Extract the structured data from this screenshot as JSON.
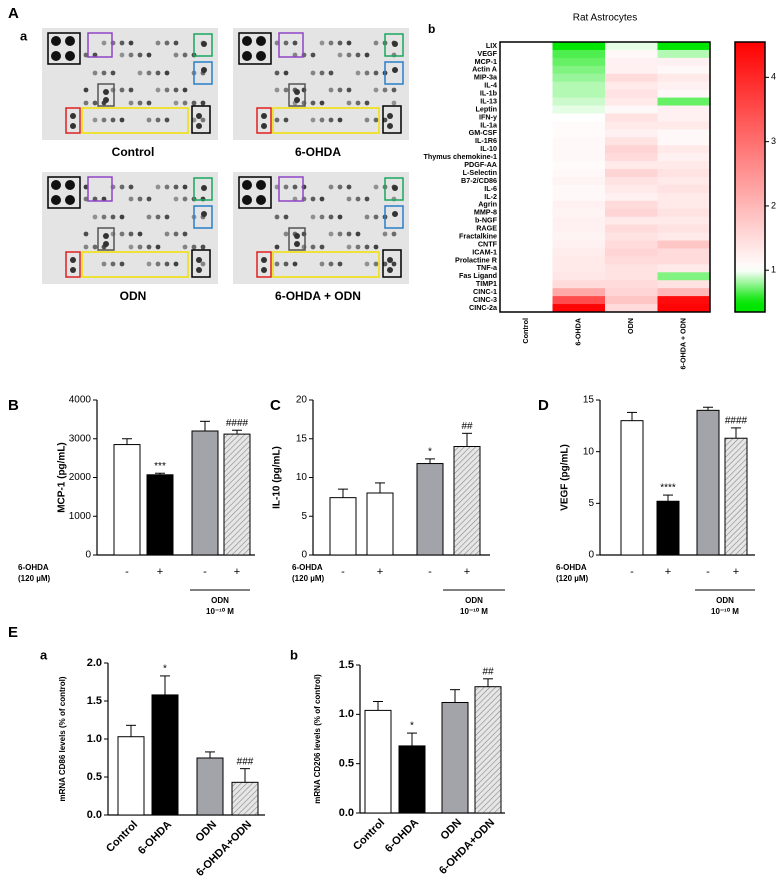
{
  "panel_labels": {
    "A": "A",
    "Aa": "a",
    "Ab": "b",
    "B": "B",
    "C": "C",
    "D": "D",
    "E": "E",
    "Ea": "a",
    "Eb": "b"
  },
  "blot_labels": [
    "Control",
    "6-OHDA",
    "ODN",
    "6-OHDA + ODN"
  ],
  "chart_data": [
    {
      "type": "heatmap",
      "title": "Rat Astrocytes",
      "rows": [
        "LIX",
        "VEGF",
        "MCP-1",
        "Actin A",
        "MIP-3a",
        "IL-4",
        "IL-1b",
        "IL-13",
        "Leptin",
        "IFN-y",
        "IL-1a",
        "GM-CSF",
        "IL-1R6",
        "IL-10",
        "Thymus chemokine-1",
        "PDGF-AA",
        "L-Selectin",
        "B7-2/CD86",
        "IL-6",
        "IL-2",
        "Agrin",
        "MMP-8",
        "b-NGF",
        "RAGE",
        "Fractalkine",
        "CNTF",
        "ICAM-1",
        "Prolactine R",
        "TNF-a",
        "Fas Ligand",
        "TIMP1",
        "CINC-1",
        "CINC-3",
        "CINC-2a"
      ],
      "columns": [
        "Control",
        "6-OHDA",
        "ODN",
        "6-OHDA + ODN"
      ],
      "values": [
        [
          1,
          0.5,
          0.95,
          0.5
        ],
        [
          1,
          0.65,
          1.1,
          0.85
        ],
        [
          1,
          0.7,
          1.2,
          1.2
        ],
        [
          1,
          0.75,
          1.2,
          1.1
        ],
        [
          1,
          0.8,
          1.5,
          1.3
        ],
        [
          1,
          0.85,
          1.3,
          1.2
        ],
        [
          1,
          0.85,
          1.4,
          1.1
        ],
        [
          1,
          0.9,
          1.3,
          0.7
        ],
        [
          1,
          0.95,
          1.1,
          1.2
        ],
        [
          1,
          1.0,
          1.4,
          1.2
        ],
        [
          1,
          1.05,
          1.3,
          1.3
        ],
        [
          1,
          1.05,
          1.2,
          1.1
        ],
        [
          1,
          1.1,
          1.4,
          1.1
        ],
        [
          1,
          1.1,
          1.6,
          1.3
        ],
        [
          1,
          1.1,
          1.5,
          1.2
        ],
        [
          1,
          1.05,
          1.3,
          1.3
        ],
        [
          1,
          1.1,
          1.6,
          1.4
        ],
        [
          1,
          1.15,
          1.4,
          1.3
        ],
        [
          1,
          1.1,
          1.3,
          1.4
        ],
        [
          1,
          1.1,
          1.2,
          1.3
        ],
        [
          1,
          1.2,
          1.5,
          1.3
        ],
        [
          1,
          1.15,
          1.6,
          1.4
        ],
        [
          1,
          1.2,
          1.3,
          1.3
        ],
        [
          1,
          1.2,
          1.5,
          1.4
        ],
        [
          1,
          1.15,
          1.4,
          1.3
        ],
        [
          1,
          1.2,
          1.5,
          1.8
        ],
        [
          1,
          1.25,
          1.6,
          1.5
        ],
        [
          1,
          1.3,
          1.5,
          1.5
        ],
        [
          1,
          1.3,
          1.4,
          1.3
        ],
        [
          1,
          1.35,
          1.4,
          0.75
        ],
        [
          1,
          1.5,
          1.5,
          1.4
        ],
        [
          1,
          2.2,
          1.6,
          2.0
        ],
        [
          1,
          3.5,
          1.8,
          4.4
        ],
        [
          1,
          4.5,
          1.5,
          4.5
        ]
      ],
      "clim": [
        0.35,
        4.55
      ],
      "color_center": 1,
      "green_limit": 0.5,
      "colorbar_ticks": [
        1,
        2,
        3,
        4
      ],
      "colors": {
        "low": "#00e600",
        "mid": "#ffffff",
        "high": "#ff0000"
      }
    },
    {
      "type": "bar",
      "ylabel": "MCP-1 (pg/mL)",
      "categories": [
        "-",
        "+",
        "-",
        "+"
      ],
      "values": [
        2850,
        2070,
        3200,
        3120
      ],
      "errors": [
        150,
        40,
        250,
        100
      ],
      "colors": [
        "#ffffff",
        "#000000",
        "#a3a3aa",
        "#e6e6e6"
      ],
      "hatch": [
        false,
        false,
        false,
        true
      ],
      "annotations": [
        {
          "index": 1,
          "text": "***"
        },
        {
          "index": 3,
          "text": "####"
        }
      ],
      "ylim": [
        0,
        4000
      ],
      "yticks": [
        0,
        1000,
        2000,
        3000,
        4000
      ],
      "treatment_label": [
        "6-OHDA",
        "(120 µM)"
      ],
      "group_label": [
        "ODN",
        "10⁻¹⁰ M"
      ]
    },
    {
      "type": "bar",
      "ylabel": "IL-10 (pg/mL)",
      "categories": [
        "-",
        "+",
        "-",
        "+"
      ],
      "values": [
        7.4,
        8.0,
        11.8,
        14.0
      ],
      "errors": [
        1.1,
        1.3,
        0.6,
        1.7
      ],
      "colors": [
        "#ffffff",
        "#ffffff",
        "#a3a3aa",
        "#e6e6e6"
      ],
      "hatch": [
        false,
        false,
        false,
        true
      ],
      "annotations": [
        {
          "index": 2,
          "text": "*"
        },
        {
          "index": 3,
          "text": "##"
        }
      ],
      "ylim": [
        0,
        20
      ],
      "yticks": [
        0,
        5,
        10,
        15,
        20
      ],
      "treatment_label": [
        "6-OHDA",
        "(120 µM)"
      ],
      "group_label": [
        "ODN",
        "10⁻¹⁰ M"
      ]
    },
    {
      "type": "bar",
      "ylabel": "VEGF (pg/mL)",
      "categories": [
        "-",
        "+",
        "-",
        "+"
      ],
      "values": [
        13.0,
        5.2,
        14.0,
        11.3
      ],
      "errors": [
        0.8,
        0.6,
        0.3,
        1.0
      ],
      "colors": [
        "#ffffff",
        "#000000",
        "#a3a3aa",
        "#e6e6e6"
      ],
      "hatch": [
        false,
        false,
        false,
        true
      ],
      "annotations": [
        {
          "index": 1,
          "text": "****"
        },
        {
          "index": 3,
          "text": "####"
        }
      ],
      "ylim": [
        0,
        15
      ],
      "yticks": [
        0,
        5,
        10,
        15
      ],
      "treatment_label": [
        "6-OHDA",
        "(120 µM)"
      ],
      "group_label": [
        "ODN",
        "10⁻¹⁰ M"
      ]
    },
    {
      "type": "bar",
      "ylabel": "mRNA CD86 levels (% of control)",
      "categories": [
        "Control",
        "6-OHDA",
        "ODN",
        "6-OHDA+ODN"
      ],
      "values": [
        1.03,
        1.58,
        0.75,
        0.43
      ],
      "errors": [
        0.15,
        0.25,
        0.08,
        0.18
      ],
      "colors": [
        "#ffffff",
        "#000000",
        "#a3a3aa",
        "#e6e6e6"
      ],
      "hatch": [
        false,
        false,
        false,
        true
      ],
      "annotations": [
        {
          "index": 1,
          "text": "*"
        },
        {
          "index": 3,
          "text": "###"
        }
      ],
      "ylim": [
        0,
        2
      ],
      "yticks": [
        {
          "value": 0,
          "label": "0.0"
        },
        0.5,
        {
          "value": 1,
          "label": "1.0"
        },
        1.5,
        {
          "value": 2,
          "label": "2.0"
        }
      ]
    },
    {
      "type": "bar",
      "ylabel": "mRNA CD206 levels (% of control)",
      "categories": [
        "Control",
        "6-OHDA",
        "ODN",
        "6-OHDA+ODN"
      ],
      "values": [
        1.04,
        0.68,
        1.12,
        1.28
      ],
      "errors": [
        0.09,
        0.13,
        0.13,
        0.08
      ],
      "colors": [
        "#ffffff",
        "#000000",
        "#a3a3aa",
        "#e6e6e6"
      ],
      "hatch": [
        false,
        false,
        false,
        true
      ],
      "annotations": [
        {
          "index": 1,
          "text": "*"
        },
        {
          "index": 3,
          "text": "##"
        }
      ],
      "ylim": [
        0,
        1.5
      ],
      "yticks": [
        {
          "value": 0,
          "label": "0.0"
        },
        0.5,
        {
          "value": 1,
          "label": "1.0"
        },
        1.5
      ]
    }
  ]
}
